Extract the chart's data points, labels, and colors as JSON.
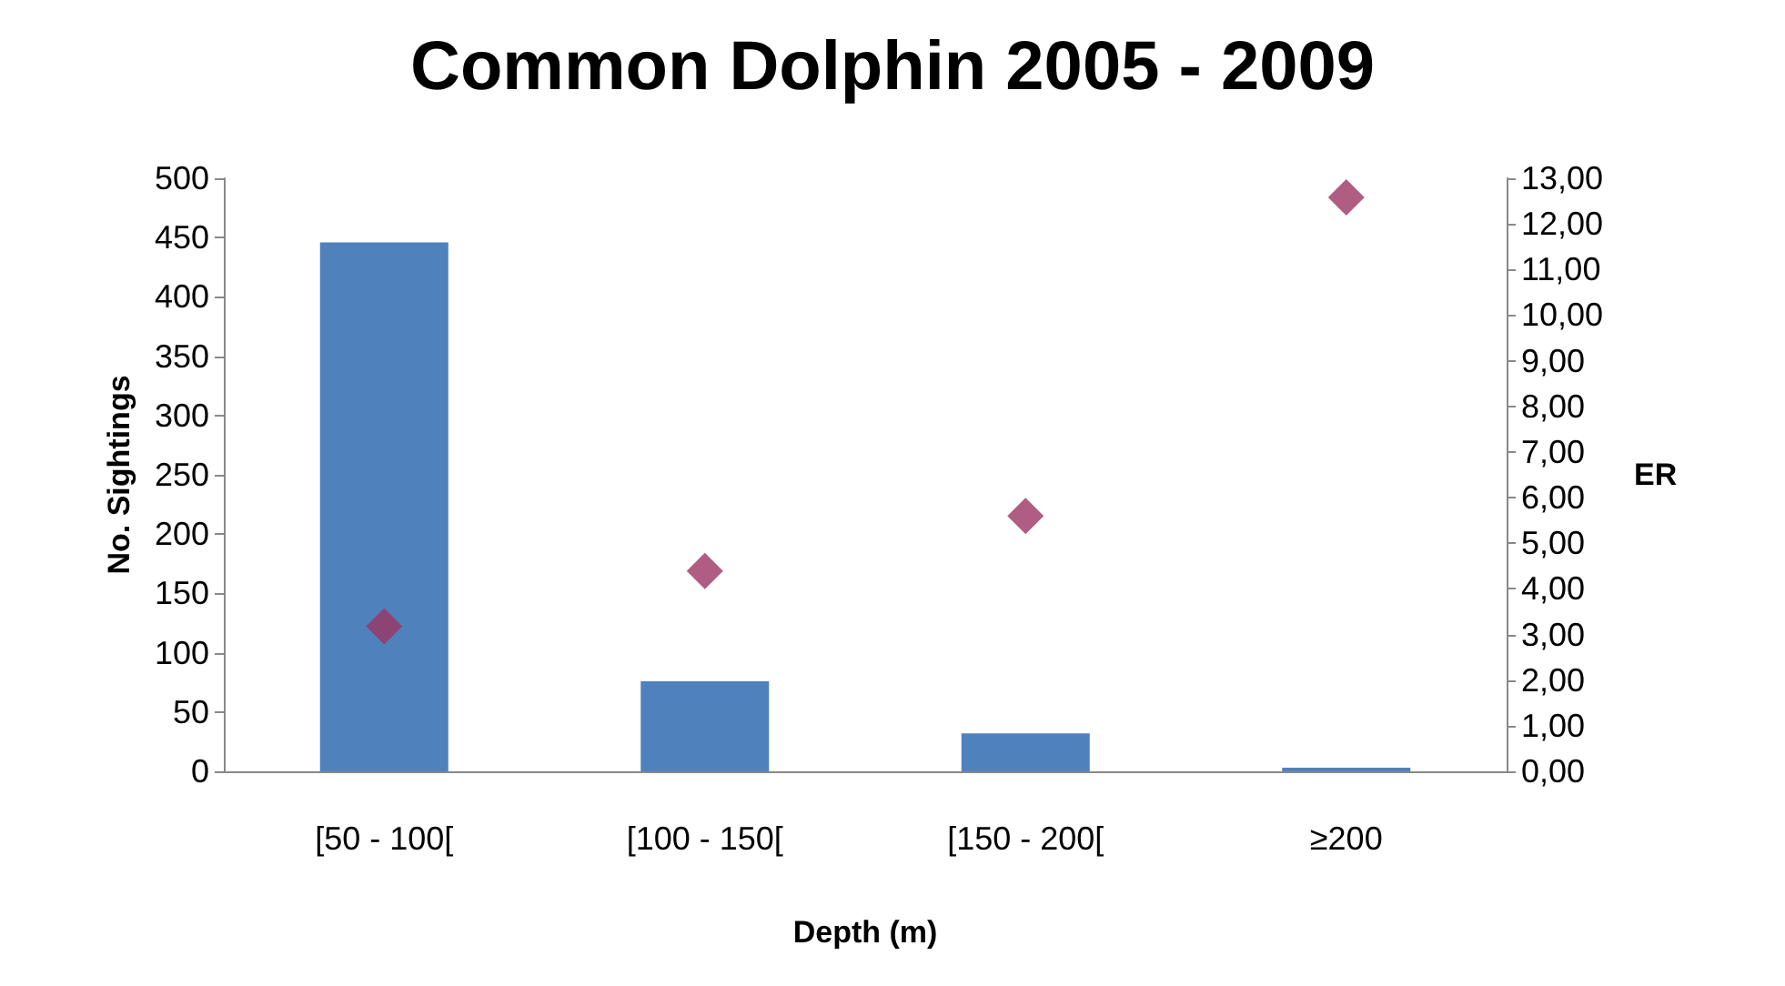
{
  "chart_data": {
    "type": "bar",
    "title": "Common Dolphin 2005 - 2009",
    "xlabel": "Depth (m)",
    "ylabel": "No. Sightings",
    "y2label": "ER",
    "categories": [
      "[50 - 100[",
      "[100 - 150[",
      "[150 - 200[",
      "≥200"
    ],
    "series": [
      {
        "color": "#4f81bd",
        "values": [
          446,
          76,
          32,
          3
        ]
      },
      {
        "type": "scatter",
        "axis": "y2",
        "marker": "diamond",
        "color": "#9b3463",
        "values": [
          3.18,
          4.39,
          5.6,
          12.58
        ]
      }
    ],
    "ylim": [
      0,
      500
    ],
    "yticks": [
      0,
      50,
      100,
      150,
      200,
      250,
      300,
      350,
      400,
      450,
      500
    ],
    "y2lim": [
      0,
      13
    ],
    "y2ticks": [
      {
        "value": 0,
        "label": "0,00"
      },
      {
        "value": 1,
        "label": "1,00"
      },
      {
        "value": 2,
        "label": "2,00"
      },
      {
        "value": 3,
        "label": "3,00"
      },
      {
        "value": 4,
        "label": "4,00"
      },
      {
        "value": 5,
        "label": "5,00"
      },
      {
        "value": 6,
        "label": "6,00"
      },
      {
        "value": 7,
        "label": "7,00"
      },
      {
        "value": 8,
        "label": "8,00"
      },
      {
        "value": 9,
        "label": "9,00"
      },
      {
        "value": 10,
        "label": "10,00"
      },
      {
        "value": 11,
        "label": "11,00"
      },
      {
        "value": 12,
        "label": "12,00"
      },
      {
        "value": 13,
        "label": "13,00"
      }
    ],
    "grid": false
  }
}
